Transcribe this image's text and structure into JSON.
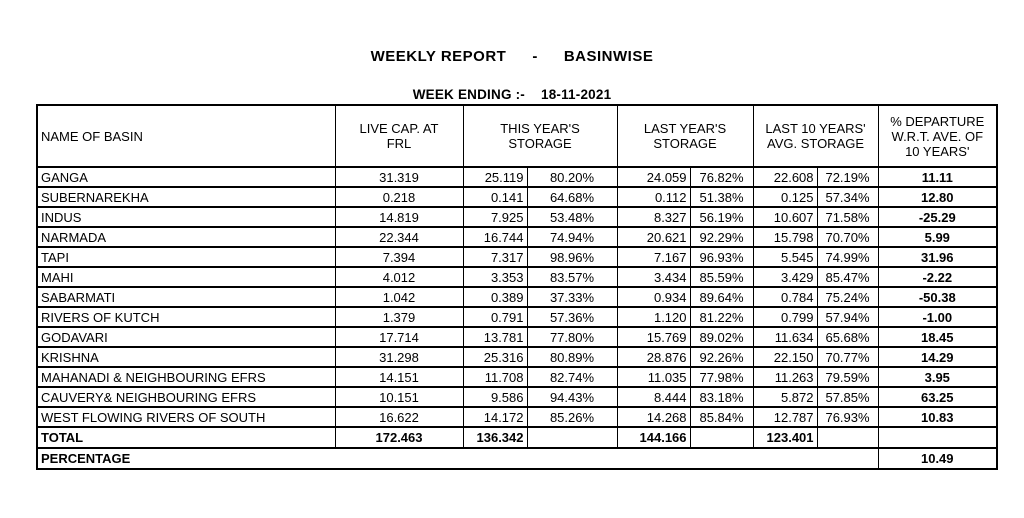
{
  "report": {
    "title": "WEEKLY REPORT",
    "separator": "-",
    "subtitle": "BASINWISE",
    "week_ending_label": "WEEK ENDING :-",
    "week_ending_date": "18-11-2021"
  },
  "table": {
    "columns": {
      "name": "NAME OF BASIN",
      "live_cap": "LIVE CAP. AT\nFRL",
      "this_year": "THIS YEAR'S\nSTORAGE",
      "last_year": "LAST YEAR'S\nSTORAGE",
      "last_10": "LAST 10 YEARS'\nAVG. STORAGE",
      "departure": "% DEPARTURE\nW.R.T. AVE. OF\n10 YEARS'"
    },
    "rows": [
      {
        "name": "GANGA",
        "live_cap": "31.319",
        "this_year": "25.119",
        "this_year_pct": "80.20%",
        "last_year": "24.059",
        "last_year_pct": "76.82%",
        "avg10": "22.608",
        "avg10_pct": "72.19%",
        "departure": "11.11"
      },
      {
        "name": "SUBERNAREKHA",
        "live_cap": "0.218",
        "this_year": "0.141",
        "this_year_pct": "64.68%",
        "last_year": "0.112",
        "last_year_pct": "51.38%",
        "avg10": "0.125",
        "avg10_pct": "57.34%",
        "departure": "12.80"
      },
      {
        "name": "INDUS",
        "live_cap": "14.819",
        "this_year": "7.925",
        "this_year_pct": "53.48%",
        "last_year": "8.327",
        "last_year_pct": "56.19%",
        "avg10": "10.607",
        "avg10_pct": "71.58%",
        "departure": "-25.29"
      },
      {
        "name": "NARMADA",
        "live_cap": "22.344",
        "this_year": "16.744",
        "this_year_pct": "74.94%",
        "last_year": "20.621",
        "last_year_pct": "92.29%",
        "avg10": "15.798",
        "avg10_pct": "70.70%",
        "departure": "5.99"
      },
      {
        "name": "TAPI",
        "live_cap": "7.394",
        "this_year": "7.317",
        "this_year_pct": "98.96%",
        "last_year": "7.167",
        "last_year_pct": "96.93%",
        "avg10": "5.545",
        "avg10_pct": "74.99%",
        "departure": "31.96"
      },
      {
        "name": "MAHI",
        "live_cap": "4.012",
        "this_year": "3.353",
        "this_year_pct": "83.57%",
        "last_year": "3.434",
        "last_year_pct": "85.59%",
        "avg10": "3.429",
        "avg10_pct": "85.47%",
        "departure": "-2.22"
      },
      {
        "name": "SABARMATI",
        "live_cap": "1.042",
        "this_year": "0.389",
        "this_year_pct": "37.33%",
        "last_year": "0.934",
        "last_year_pct": "89.64%",
        "avg10": "0.784",
        "avg10_pct": "75.24%",
        "departure": "-50.38"
      },
      {
        "name": "RIVERS OF KUTCH",
        "live_cap": "1.379",
        "this_year": "0.791",
        "this_year_pct": "57.36%",
        "last_year": "1.120",
        "last_year_pct": "81.22%",
        "avg10": "0.799",
        "avg10_pct": "57.94%",
        "departure": "-1.00"
      },
      {
        "name": "GODAVARI",
        "live_cap": "17.714",
        "this_year": "13.781",
        "this_year_pct": "77.80%",
        "last_year": "15.769",
        "last_year_pct": "89.02%",
        "avg10": "11.634",
        "avg10_pct": "65.68%",
        "departure": "18.45"
      },
      {
        "name": "KRISHNA",
        "live_cap": "31.298",
        "this_year": "25.316",
        "this_year_pct": "80.89%",
        "last_year": "28.876",
        "last_year_pct": "92.26%",
        "avg10": "22.150",
        "avg10_pct": "70.77%",
        "departure": "14.29"
      },
      {
        "name": "MAHANADI & NEIGHBOURING EFRS",
        "live_cap": "14.151",
        "this_year": "11.708",
        "this_year_pct": "82.74%",
        "last_year": "11.035",
        "last_year_pct": "77.98%",
        "avg10": "11.263",
        "avg10_pct": "79.59%",
        "departure": "3.95"
      },
      {
        "name": "CAUVERY& NEIGHBOURING EFRS",
        "live_cap": "10.151",
        "this_year": "9.586",
        "this_year_pct": "94.43%",
        "last_year": "8.444",
        "last_year_pct": "83.18%",
        "avg10": "5.872",
        "avg10_pct": "57.85%",
        "departure": "63.25"
      },
      {
        "name": "WEST FLOWING RIVERS OF SOUTH",
        "live_cap": "16.622",
        "this_year": "14.172",
        "this_year_pct": "85.26%",
        "last_year": "14.268",
        "last_year_pct": "85.84%",
        "avg10": "12.787",
        "avg10_pct": "76.93%",
        "departure": "10.83"
      }
    ],
    "total_row": {
      "label": "TOTAL",
      "live_cap": "172.463",
      "this_year": "136.342",
      "last_year": "144.166",
      "avg10": "123.401"
    },
    "percentage_row": {
      "label": "PERCENTAGE",
      "departure": "10.49"
    }
  }
}
